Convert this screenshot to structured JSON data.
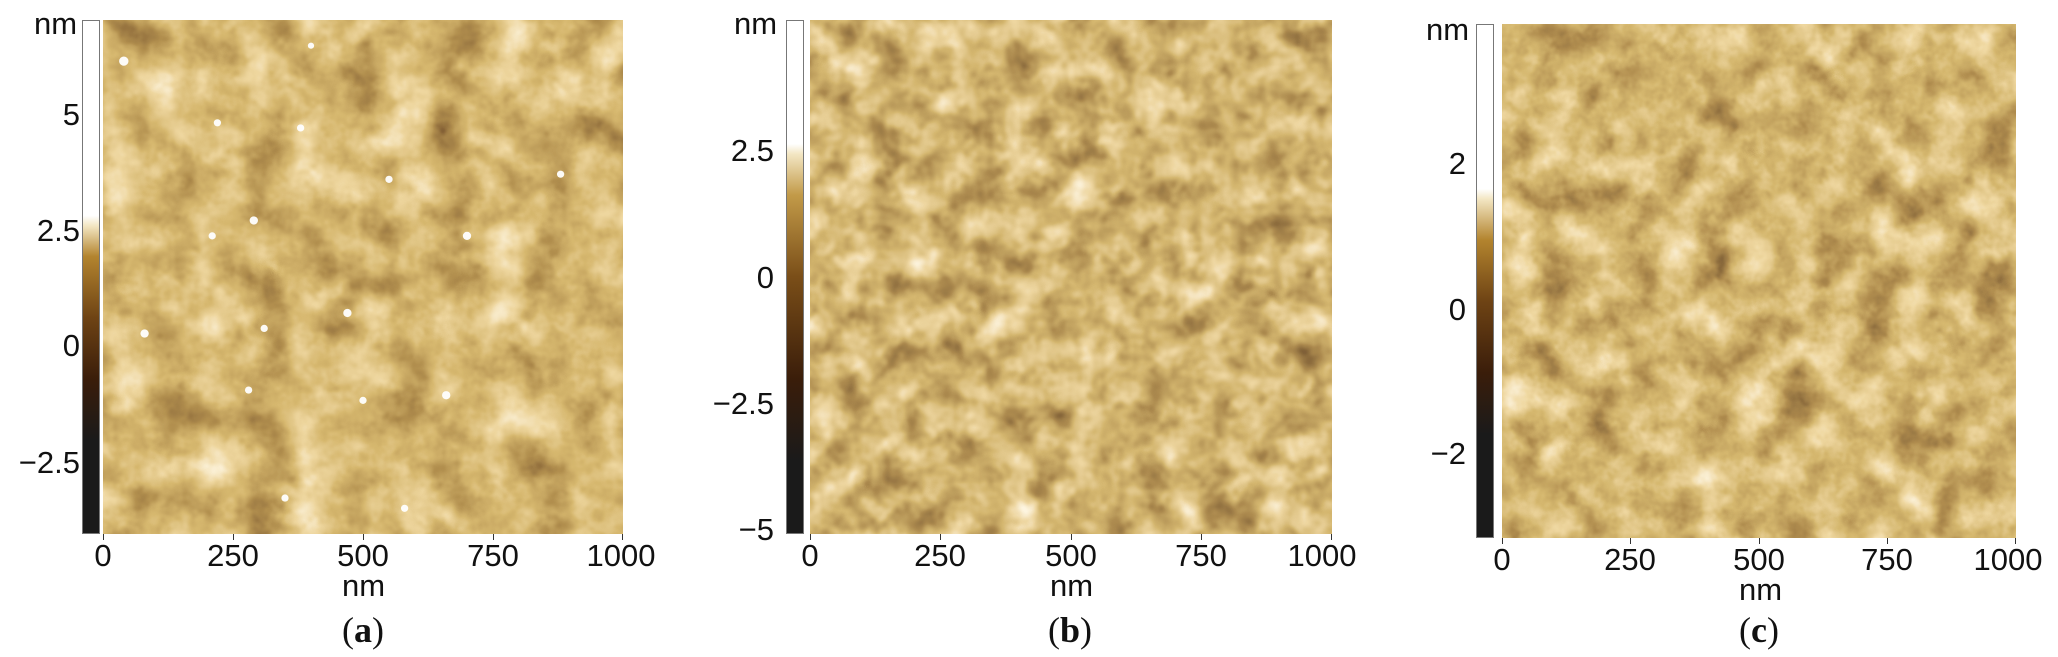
{
  "panels": [
    {
      "id": "a",
      "caption_prefix": "(",
      "caption_letter": "a",
      "caption_suffix": ")",
      "y_unit": "nm",
      "x_unit": "nm",
      "colorbar_ticks": [
        "5",
        "2.5",
        "0",
        "−2.5"
      ],
      "x_ticks": [
        "0",
        "250",
        "500",
        "750",
        "1000"
      ]
    },
    {
      "id": "b",
      "caption_prefix": "(",
      "caption_letter": "b",
      "caption_suffix": ")",
      "y_unit": "nm",
      "x_unit": "nm",
      "colorbar_ticks": [
        "2.5",
        "0",
        "−2.5",
        "−5"
      ],
      "x_ticks": [
        "0",
        "250",
        "500",
        "750",
        "1000"
      ]
    },
    {
      "id": "c",
      "caption_prefix": "(",
      "caption_letter": "c",
      "caption_suffix": ")",
      "y_unit": "nm",
      "x_unit": "nm",
      "colorbar_ticks": [
        "2",
        "0",
        "−2"
      ],
      "x_ticks": [
        "0",
        "250",
        "500",
        "750",
        "1000"
      ]
    }
  ],
  "colormap": [
    "#1a1a1a",
    "#3a1d0a",
    "#5e3510",
    "#8a5a1a",
    "#b3842e",
    "#d8b66a",
    "#f3e6c3",
    "#ffffff"
  ]
}
